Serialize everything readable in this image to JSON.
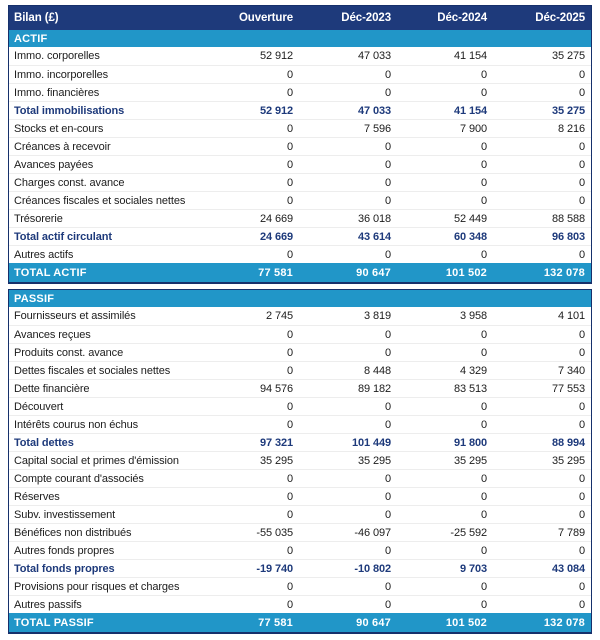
{
  "colors": {
    "header_navy": "#1E3A7B",
    "band_blue": "#2196C8",
    "subtotal_text": "#1E3A7B",
    "border_navy": "#16306b"
  },
  "table": {
    "title": "Bilan (£)",
    "columns": [
      "Ouverture",
      "Déc-2023",
      "Déc-2024",
      "Déc-2025"
    ],
    "sections": [
      {
        "name": "ACTIF",
        "rows": [
          {
            "label": "Immo. corporelles",
            "values": [
              "52 912",
              "47 033",
              "41 154",
              "35 275"
            ],
            "bold": false
          },
          {
            "label": "Immo. incorporelles",
            "values": [
              "0",
              "0",
              "0",
              "0"
            ],
            "bold": false
          },
          {
            "label": "Immo. financières",
            "values": [
              "0",
              "0",
              "0",
              "0"
            ],
            "bold": false
          },
          {
            "label": "Total immobilisations",
            "values": [
              "52 912",
              "47 033",
              "41 154",
              "35 275"
            ],
            "bold": true
          },
          {
            "label": "Stocks et en-cours",
            "values": [
              "0",
              "7 596",
              "7 900",
              "8 216"
            ],
            "bold": false
          },
          {
            "label": "Créances à recevoir",
            "values": [
              "0",
              "0",
              "0",
              "0"
            ],
            "bold": false
          },
          {
            "label": "Avances payées",
            "values": [
              "0",
              "0",
              "0",
              "0"
            ],
            "bold": false
          },
          {
            "label": "Charges const. avance",
            "values": [
              "0",
              "0",
              "0",
              "0"
            ],
            "bold": false
          },
          {
            "label": "Créances fiscales et sociales nettes",
            "values": [
              "0",
              "0",
              "0",
              "0"
            ],
            "bold": false
          },
          {
            "label": "Trésorerie",
            "values": [
              "24 669",
              "36 018",
              "52 449",
              "88 588"
            ],
            "bold": false
          },
          {
            "label": "Total actif circulant",
            "values": [
              "24 669",
              "43 614",
              "60 348",
              "96 803"
            ],
            "bold": true
          },
          {
            "label": "Autres actifs",
            "values": [
              "0",
              "0",
              "0",
              "0"
            ],
            "bold": false
          }
        ],
        "total": {
          "label": "TOTAL ACTIF",
          "values": [
            "77 581",
            "90 647",
            "101 502",
            "132 078"
          ]
        }
      },
      {
        "name": "PASSIF",
        "rows": [
          {
            "label": "Fournisseurs et assimilés",
            "values": [
              "2 745",
              "3 819",
              "3 958",
              "4 101"
            ],
            "bold": false
          },
          {
            "label": "Avances reçues",
            "values": [
              "0",
              "0",
              "0",
              "0"
            ],
            "bold": false
          },
          {
            "label": "Produits const. avance",
            "values": [
              "0",
              "0",
              "0",
              "0"
            ],
            "bold": false
          },
          {
            "label": "Dettes fiscales et sociales nettes",
            "values": [
              "0",
              "8 448",
              "4 329",
              "7 340"
            ],
            "bold": false
          },
          {
            "label": "Dette financière",
            "values": [
              "94 576",
              "89 182",
              "83 513",
              "77 553"
            ],
            "bold": false
          },
          {
            "label": "Découvert",
            "values": [
              "0",
              "0",
              "0",
              "0"
            ],
            "bold": false
          },
          {
            "label": "Intérêts courus non échus",
            "values": [
              "0",
              "0",
              "0",
              "0"
            ],
            "bold": false
          },
          {
            "label": "Total dettes",
            "values": [
              "97 321",
              "101 449",
              "91 800",
              "88 994"
            ],
            "bold": true
          },
          {
            "label": "Capital social et primes d'émission",
            "values": [
              "35 295",
              "35 295",
              "35 295",
              "35 295"
            ],
            "bold": false
          },
          {
            "label": "Compte courant d'associés",
            "values": [
              "0",
              "0",
              "0",
              "0"
            ],
            "bold": false
          },
          {
            "label": "Réserves",
            "values": [
              "0",
              "0",
              "0",
              "0"
            ],
            "bold": false
          },
          {
            "label": "Subv. investissement",
            "values": [
              "0",
              "0",
              "0",
              "0"
            ],
            "bold": false
          },
          {
            "label": "Bénéfices non distribués",
            "values": [
              "-55 035",
              "-46 097",
              "-25 592",
              "7 789"
            ],
            "bold": false
          },
          {
            "label": "Autres fonds propres",
            "values": [
              "0",
              "0",
              "0",
              "0"
            ],
            "bold": false
          },
          {
            "label": "Total fonds propres",
            "values": [
              "-19 740",
              "-10 802",
              "9 703",
              "43 084"
            ],
            "bold": true
          },
          {
            "label": "Provisions pour risques et charges",
            "values": [
              "0",
              "0",
              "0",
              "0"
            ],
            "bold": false
          },
          {
            "label": "Autres passifs",
            "values": [
              "0",
              "0",
              "0",
              "0"
            ],
            "bold": false
          }
        ],
        "total": {
          "label": "TOTAL PASSIF",
          "values": [
            "77 581",
            "90 647",
            "101 502",
            "132 078"
          ]
        }
      }
    ]
  }
}
